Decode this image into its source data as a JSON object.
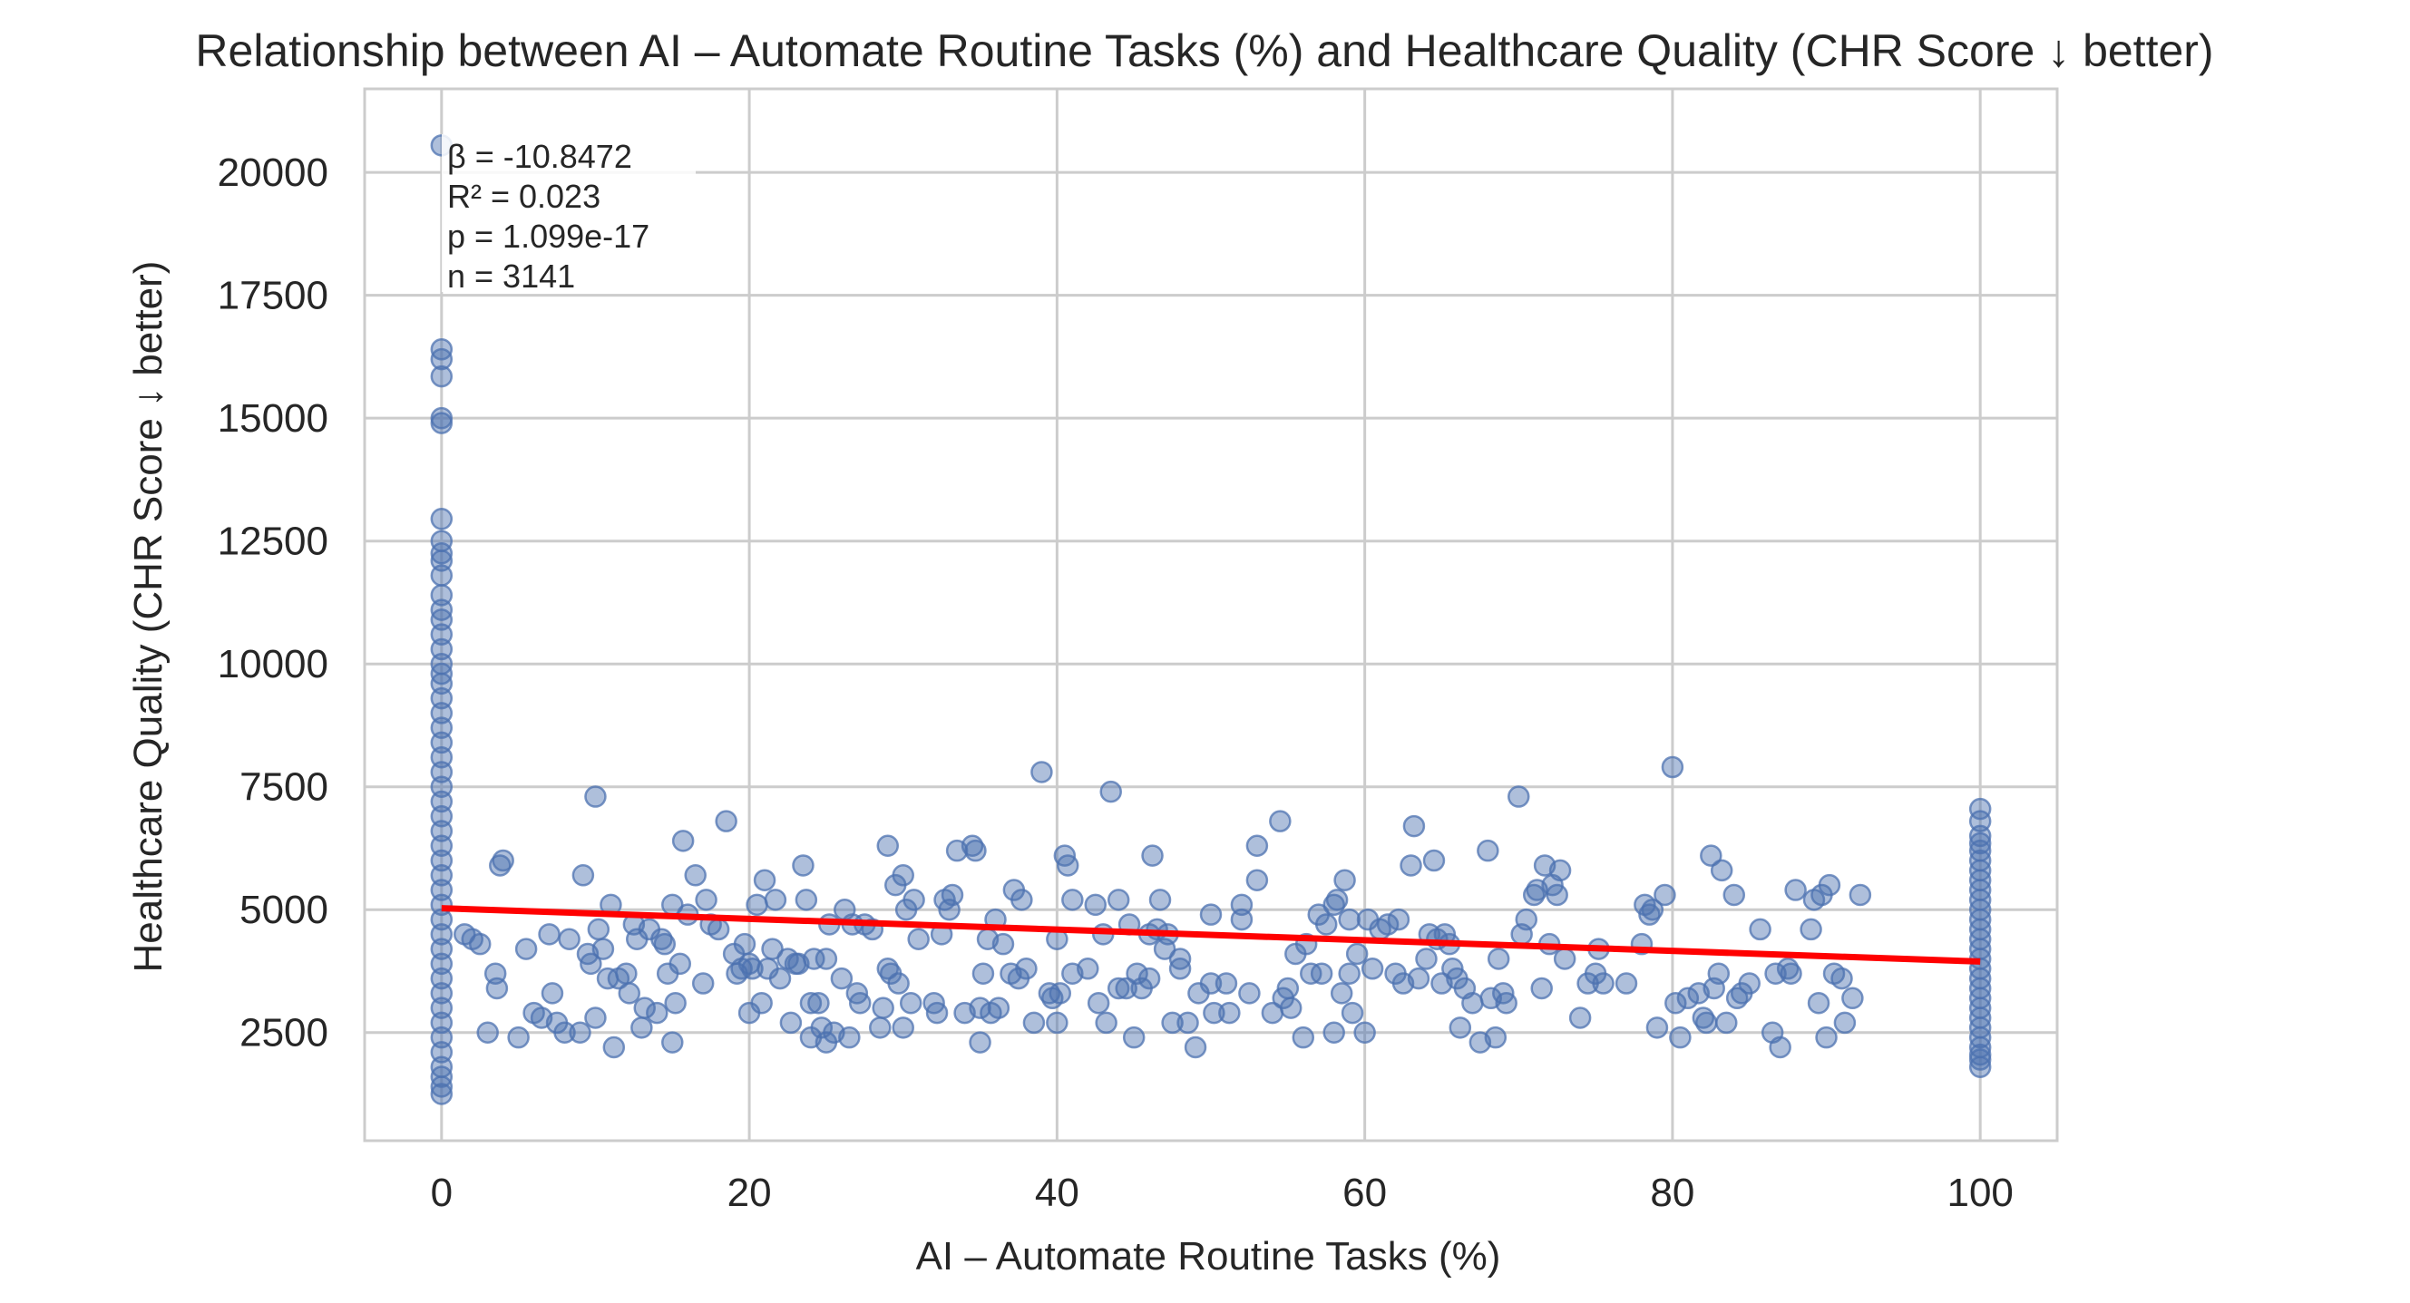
{
  "chart_data": {
    "type": "scatter",
    "title": "Relationship between AI – Automate Routine Tasks (%) and Healthcare Quality (CHR Score ↓ better)",
    "xlabel": "AI – Automate Routine Tasks (%)",
    "ylabel": "Healthcare Quality (CHR Score ↓ better)",
    "xlim": [
      -5,
      105
    ],
    "ylim": [
      300,
      21700
    ],
    "xticks": [
      0,
      20,
      40,
      60,
      80,
      100
    ],
    "yticks": [
      2500,
      5000,
      7500,
      10000,
      12500,
      15000,
      17500,
      20000
    ],
    "grid": true,
    "stats": [
      "β = -10.8472",
      "R² = 0.023",
      "p = 1.099e-17",
      "n = 3141"
    ],
    "regression": {
      "x": [
        0,
        100
      ],
      "y": [
        5030,
        3945
      ],
      "color": "#ff0000"
    },
    "point_color": "#4c72b0",
    "points": [
      [
        0,
        20550
      ],
      [
        0,
        16400
      ],
      [
        0,
        16200
      ],
      [
        0,
        15850
      ],
      [
        0,
        15000
      ],
      [
        0,
        14900
      ],
      [
        0,
        12950
      ],
      [
        0,
        12500
      ],
      [
        0,
        12250
      ],
      [
        0,
        12100
      ],
      [
        0,
        11800
      ],
      [
        0,
        11400
      ],
      [
        0,
        11100
      ],
      [
        0,
        10900
      ],
      [
        0,
        10600
      ],
      [
        0,
        10300
      ],
      [
        0,
        10000
      ],
      [
        0,
        9800
      ],
      [
        0,
        9600
      ],
      [
        0,
        9300
      ],
      [
        0,
        9000
      ],
      [
        0,
        8700
      ],
      [
        0,
        8400
      ],
      [
        0,
        8100
      ],
      [
        0,
        7800
      ],
      [
        0,
        7500
      ],
      [
        0,
        7200
      ],
      [
        0,
        6900
      ],
      [
        0,
        6600
      ],
      [
        0,
        6300
      ],
      [
        0,
        6000
      ],
      [
        0,
        5700
      ],
      [
        0,
        5400
      ],
      [
        0,
        5100
      ],
      [
        0,
        4800
      ],
      [
        0,
        4500
      ],
      [
        0,
        4200
      ],
      [
        0,
        3900
      ],
      [
        0,
        3600
      ],
      [
        0,
        3300
      ],
      [
        0,
        3000
      ],
      [
        0,
        2700
      ],
      [
        0,
        2400
      ],
      [
        0,
        2100
      ],
      [
        0,
        1800
      ],
      [
        0,
        1600
      ],
      [
        0,
        1400
      ],
      [
        0,
        1250
      ],
      [
        1.5,
        4500
      ],
      [
        2,
        4400
      ],
      [
        2.5,
        4300
      ],
      [
        3,
        2500
      ],
      [
        3.5,
        3700
      ],
      [
        3.6,
        3400
      ],
      [
        3.8,
        5900
      ],
      [
        4,
        6000
      ],
      [
        5,
        2400
      ],
      [
        5.5,
        4200
      ],
      [
        6,
        2900
      ],
      [
        6.5,
        2800
      ],
      [
        7,
        4500
      ],
      [
        7.2,
        3300
      ],
      [
        7.5,
        2700
      ],
      [
        8,
        2500
      ],
      [
        8.3,
        4400
      ],
      [
        9,
        2500
      ],
      [
        9.2,
        5700
      ],
      [
        9.5,
        4100
      ],
      [
        9.7,
        3900
      ],
      [
        10,
        7300
      ],
      [
        10,
        2800
      ],
      [
        10.2,
        4600
      ],
      [
        10.5,
        4200
      ],
      [
        10.8,
        3600
      ],
      [
        11,
        5100
      ],
      [
        11.2,
        2200
      ],
      [
        11.5,
        3600
      ],
      [
        12,
        3700
      ],
      [
        12.2,
        3300
      ],
      [
        12.5,
        4700
      ],
      [
        12.7,
        4400
      ],
      [
        13,
        2600
      ],
      [
        13.2,
        3000
      ],
      [
        13.5,
        4600
      ],
      [
        14,
        2900
      ],
      [
        14.3,
        4400
      ],
      [
        14.5,
        4300
      ],
      [
        14.7,
        3700
      ],
      [
        15,
        5100
      ],
      [
        15,
        2300
      ],
      [
        15.2,
        3100
      ],
      [
        15.5,
        3900
      ],
      [
        15.7,
        6400
      ],
      [
        16,
        4900
      ],
      [
        16.5,
        5700
      ],
      [
        17,
        3500
      ],
      [
        17.2,
        5200
      ],
      [
        17.5,
        4700
      ],
      [
        18,
        4600
      ],
      [
        18.5,
        6800
      ],
      [
        19,
        4100
      ],
      [
        19.2,
        3700
      ],
      [
        19.5,
        3800
      ],
      [
        19.7,
        4300
      ],
      [
        20,
        3900
      ],
      [
        20,
        2900
      ],
      [
        20.2,
        3800
      ],
      [
        20.5,
        5100
      ],
      [
        20.8,
        3100
      ],
      [
        21,
        5600
      ],
      [
        21.2,
        3800
      ],
      [
        21.5,
        4200
      ],
      [
        21.7,
        5200
      ],
      [
        22,
        3600
      ],
      [
        22.5,
        4000
      ],
      [
        22.7,
        2700
      ],
      [
        23,
        3900
      ],
      [
        23.2,
        3900
      ],
      [
        23.5,
        5900
      ],
      [
        23.7,
        5200
      ],
      [
        24,
        3100
      ],
      [
        24,
        2400
      ],
      [
        24.2,
        4000
      ],
      [
        24.5,
        3100
      ],
      [
        24.7,
        2600
      ],
      [
        25,
        2300
      ],
      [
        25,
        4000
      ],
      [
        25.2,
        4700
      ],
      [
        25.5,
        2500
      ],
      [
        26,
        3600
      ],
      [
        26.2,
        5000
      ],
      [
        26.5,
        2400
      ],
      [
        26.7,
        4700
      ],
      [
        27,
        3300
      ],
      [
        27.2,
        3100
      ],
      [
        27.5,
        4700
      ],
      [
        28,
        4600
      ],
      [
        28.5,
        2600
      ],
      [
        28.7,
        3000
      ],
      [
        29,
        6300
      ],
      [
        29,
        3800
      ],
      [
        29.2,
        3700
      ],
      [
        29.5,
        5500
      ],
      [
        29.7,
        3500
      ],
      [
        30,
        5700
      ],
      [
        30,
        2600
      ],
      [
        30.2,
        5000
      ],
      [
        30.5,
        3100
      ],
      [
        30.7,
        5200
      ],
      [
        31,
        4400
      ],
      [
        32,
        3100
      ],
      [
        32.2,
        2900
      ],
      [
        32.5,
        4500
      ],
      [
        32.7,
        5200
      ],
      [
        33,
        5000
      ],
      [
        33.2,
        5300
      ],
      [
        33.5,
        6200
      ],
      [
        34,
        2900
      ],
      [
        34.5,
        6300
      ],
      [
        34.7,
        6200
      ],
      [
        35,
        3000
      ],
      [
        35,
        2300
      ],
      [
        35.2,
        3700
      ],
      [
        35.5,
        4400
      ],
      [
        35.7,
        2900
      ],
      [
        36,
        4800
      ],
      [
        36.2,
        3000
      ],
      [
        36.5,
        4300
      ],
      [
        37,
        3700
      ],
      [
        37.2,
        5400
      ],
      [
        37.5,
        3600
      ],
      [
        37.7,
        5200
      ],
      [
        38,
        3800
      ],
      [
        38.5,
        2700
      ],
      [
        39,
        7800
      ],
      [
        39.5,
        3300
      ],
      [
        39.7,
        3200
      ],
      [
        40,
        4400
      ],
      [
        40,
        2700
      ],
      [
        40.2,
        3300
      ],
      [
        40.5,
        6100
      ],
      [
        40.7,
        5900
      ],
      [
        41,
        5200
      ],
      [
        41,
        3700
      ],
      [
        42,
        3800
      ],
      [
        42.5,
        5100
      ],
      [
        42.7,
        3100
      ],
      [
        43,
        4500
      ],
      [
        43.2,
        2700
      ],
      [
        43.5,
        7400
      ],
      [
        44,
        3400
      ],
      [
        44,
        5200
      ],
      [
        44.5,
        3400
      ],
      [
        44.7,
        4700
      ],
      [
        45,
        2400
      ],
      [
        45.2,
        3700
      ],
      [
        45.5,
        3400
      ],
      [
        46,
        3600
      ],
      [
        46,
        4500
      ],
      [
        46.2,
        6100
      ],
      [
        46.5,
        4600
      ],
      [
        46.7,
        5200
      ],
      [
        47,
        4200
      ],
      [
        47.2,
        4500
      ],
      [
        47.5,
        2700
      ],
      [
        48,
        4000
      ],
      [
        48,
        3800
      ],
      [
        48.5,
        2700
      ],
      [
        49,
        2200
      ],
      [
        49.2,
        3300
      ],
      [
        50,
        4900
      ],
      [
        50,
        3500
      ],
      [
        50.2,
        2900
      ],
      [
        51,
        3500
      ],
      [
        51.2,
        2900
      ],
      [
        52,
        5100
      ],
      [
        52,
        4800
      ],
      [
        52.5,
        3300
      ],
      [
        53,
        5600
      ],
      [
        53,
        6300
      ],
      [
        54,
        2900
      ],
      [
        54.5,
        6800
      ],
      [
        54.7,
        3200
      ],
      [
        55,
        3400
      ],
      [
        55.2,
        3000
      ],
      [
        55.5,
        4100
      ],
      [
        56,
        2400
      ],
      [
        56.2,
        4300
      ],
      [
        56.5,
        3700
      ],
      [
        57,
        4900
      ],
      [
        57.2,
        3700
      ],
      [
        57.5,
        4700
      ],
      [
        58,
        2500
      ],
      [
        58,
        5100
      ],
      [
        58.2,
        5200
      ],
      [
        58.5,
        3300
      ],
      [
        58.7,
        5600
      ],
      [
        59,
        4800
      ],
      [
        59,
        3700
      ],
      [
        59.2,
        2900
      ],
      [
        59.5,
        4100
      ],
      [
        60,
        2500
      ],
      [
        60.2,
        4800
      ],
      [
        60.5,
        3800
      ],
      [
        61,
        4600
      ],
      [
        61.5,
        4700
      ],
      [
        62,
        3700
      ],
      [
        62.2,
        4800
      ],
      [
        62.5,
        3500
      ],
      [
        63,
        5900
      ],
      [
        63.2,
        6700
      ],
      [
        63.5,
        3600
      ],
      [
        64,
        4000
      ],
      [
        64.2,
        4500
      ],
      [
        64.5,
        6000
      ],
      [
        64.7,
        4400
      ],
      [
        65,
        3500
      ],
      [
        65.2,
        4500
      ],
      [
        65.5,
        4300
      ],
      [
        65.7,
        3800
      ],
      [
        66,
        3600
      ],
      [
        66.2,
        2600
      ],
      [
        66.5,
        3400
      ],
      [
        67,
        3100
      ],
      [
        67.5,
        2300
      ],
      [
        68,
        6200
      ],
      [
        68.2,
        3200
      ],
      [
        68.5,
        2400
      ],
      [
        68.7,
        4000
      ],
      [
        69,
        3300
      ],
      [
        69.2,
        3100
      ],
      [
        70,
        7300
      ],
      [
        70.2,
        4500
      ],
      [
        70.5,
        4800
      ],
      [
        71,
        5300
      ],
      [
        71.2,
        5400
      ],
      [
        71.5,
        3400
      ],
      [
        71.7,
        5900
      ],
      [
        72,
        4300
      ],
      [
        72.2,
        5500
      ],
      [
        72.5,
        5300
      ],
      [
        72.7,
        5800
      ],
      [
        73,
        4000
      ],
      [
        74,
        2800
      ],
      [
        74.5,
        3500
      ],
      [
        75,
        3700
      ],
      [
        75.2,
        4200
      ],
      [
        75.5,
        3500
      ],
      [
        77,
        3500
      ],
      [
        78,
        4300
      ],
      [
        78.2,
        5100
      ],
      [
        78.5,
        4900
      ],
      [
        78.7,
        5000
      ],
      [
        79,
        2600
      ],
      [
        79.5,
        5300
      ],
      [
        80,
        7900
      ],
      [
        80.2,
        3100
      ],
      [
        80.5,
        2400
      ],
      [
        81,
        3200
      ],
      [
        81.7,
        3300
      ],
      [
        82,
        2800
      ],
      [
        82.2,
        2700
      ],
      [
        82.5,
        6100
      ],
      [
        82.7,
        3400
      ],
      [
        83,
        3700
      ],
      [
        83.2,
        5800
      ],
      [
        83.5,
        2700
      ],
      [
        84,
        5300
      ],
      [
        84.2,
        3200
      ],
      [
        84.5,
        3300
      ],
      [
        85,
        3500
      ],
      [
        85.7,
        4600
      ],
      [
        86.5,
        2500
      ],
      [
        86.7,
        3700
      ],
      [
        87,
        2200
      ],
      [
        87.5,
        3800
      ],
      [
        87.7,
        3700
      ],
      [
        88,
        5400
      ],
      [
        89,
        4600
      ],
      [
        89.2,
        5200
      ],
      [
        89.5,
        3100
      ],
      [
        89.7,
        5300
      ],
      [
        90,
        2400
      ],
      [
        90.2,
        5500
      ],
      [
        90.5,
        3700
      ],
      [
        91,
        3600
      ],
      [
        91.2,
        2700
      ],
      [
        91.7,
        3200
      ],
      [
        92.2,
        5300
      ],
      [
        100,
        7050
      ],
      [
        100,
        6800
      ],
      [
        100,
        6500
      ],
      [
        100,
        6350
      ],
      [
        100,
        6200
      ],
      [
        100,
        6000
      ],
      [
        100,
        5800
      ],
      [
        100,
        5600
      ],
      [
        100,
        5400
      ],
      [
        100,
        5200
      ],
      [
        100,
        5000
      ],
      [
        100,
        4800
      ],
      [
        100,
        4600
      ],
      [
        100,
        4400
      ],
      [
        100,
        4200
      ],
      [
        100,
        4000
      ],
      [
        100,
        3800
      ],
      [
        100,
        3600
      ],
      [
        100,
        3400
      ],
      [
        100,
        3200
      ],
      [
        100,
        3000
      ],
      [
        100,
        2800
      ],
      [
        100,
        2600
      ],
      [
        100,
        2400
      ],
      [
        100,
        2200
      ],
      [
        100,
        2050
      ],
      [
        100,
        1950
      ],
      [
        100,
        1800
      ]
    ]
  }
}
